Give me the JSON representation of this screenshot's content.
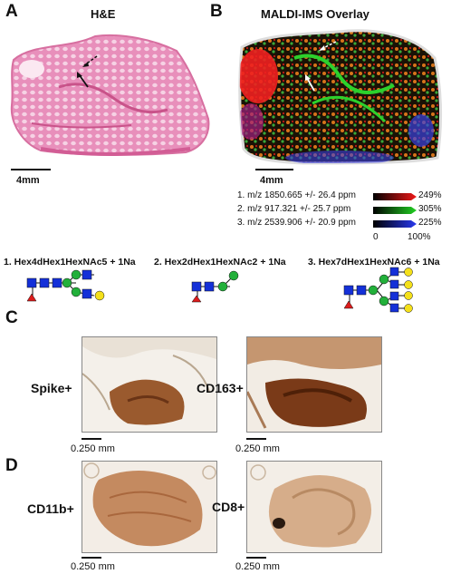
{
  "panelA": {
    "letter": "A",
    "title": "H&E",
    "scale": "4mm"
  },
  "panelB": {
    "letter": "B",
    "title": "MALDI-IMS Overlay",
    "scale": "4mm",
    "legend": [
      {
        "num": "1.",
        "text": "m/z 1850.665 +/-  26.4 ppm",
        "pct": "249%",
        "color": "#e0101a"
      },
      {
        "num": "2.",
        "text": "m/z  917.321 +/-  25.7 ppm",
        "pct": "305%",
        "color": "#22c81e"
      },
      {
        "num": "3.",
        "text": "m/z 2539.906 +/- 20.9 ppm",
        "pct": "225%",
        "color": "#2030e0"
      }
    ],
    "axis_min": "0",
    "axis_max": "100%"
  },
  "glycans": [
    {
      "name": "1. Hex4dHex1HexNAc5 + 1Na"
    },
    {
      "name": "2. Hex2dHex1HexNAc2 + 1Na"
    },
    {
      "name": "3. Hex7dHex1HexNAc6 + 1Na"
    }
  ],
  "panelC": {
    "letter": "C",
    "items": [
      {
        "label": "Spike+",
        "scale": "0.250 mm"
      },
      {
        "label": "CD163+",
        "scale": "0.250 mm"
      }
    ]
  },
  "panelD": {
    "letter": "D",
    "items": [
      {
        "label": "CD11b+",
        "scale": "0.250 mm"
      },
      {
        "label": "CD8+",
        "scale": "0.250 mm"
      }
    ]
  },
  "colors": {
    "he_pink": "#e48cb4",
    "he_deep": "#c9538a",
    "dab_brown": "#8a4b25",
    "dab_light": "#d9b896",
    "glycan_blue": "#1430d8",
    "glycan_green": "#22b03a",
    "glycan_yellow": "#f4e01a",
    "glycan_red": "#dc1c1c"
  }
}
